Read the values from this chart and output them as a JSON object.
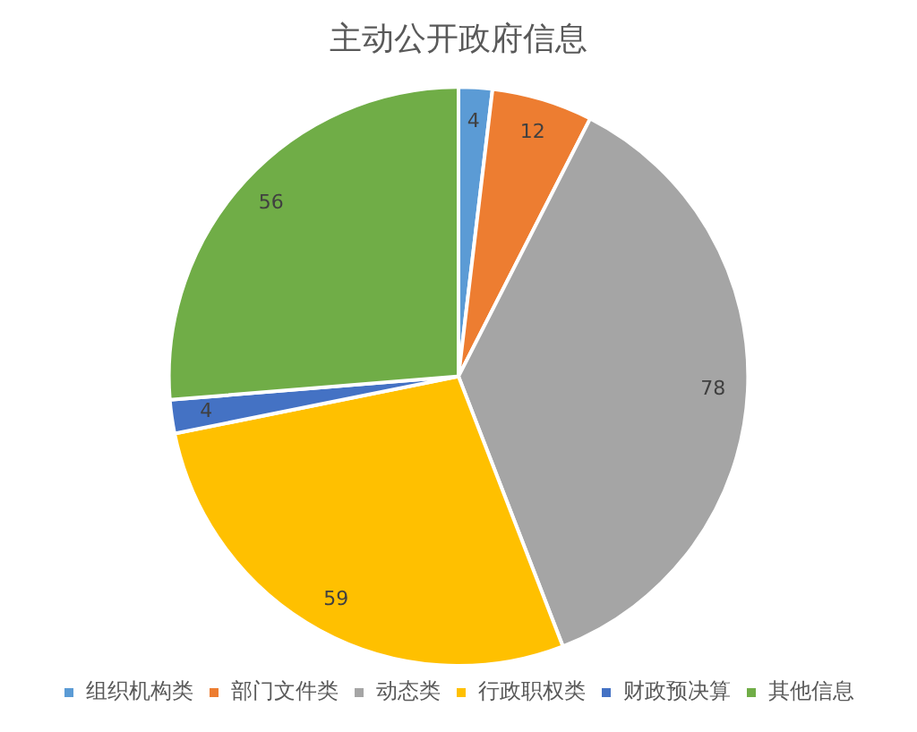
{
  "chart_data": {
    "type": "pie",
    "title": "主动公开政府信息",
    "categories": [
      "组织机构类",
      "部门文件类",
      "动态类",
      "行政职权类",
      "财政预决算",
      "其他信息"
    ],
    "values": [
      4,
      12,
      78,
      59,
      4,
      56
    ],
    "colors": [
      "#5b9bd5",
      "#ed7d31",
      "#a5a5a5",
      "#ffc000",
      "#4472c4",
      "#70ad47"
    ],
    "data_labels": true,
    "legend": "bottom"
  }
}
